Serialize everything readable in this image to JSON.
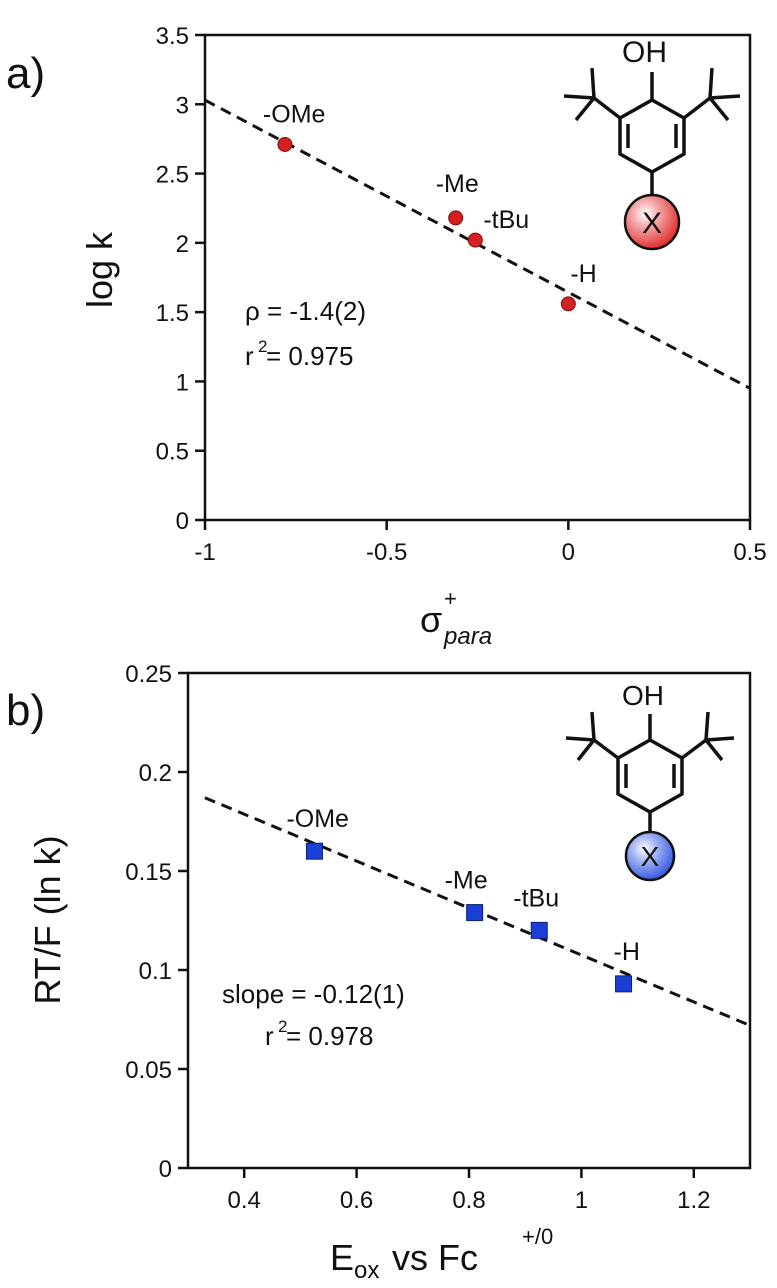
{
  "figure": {
    "panel_a_letter": "a)",
    "panel_b_letter": "b)"
  },
  "chart_data": [
    {
      "type": "scatter",
      "panel": "a)",
      "xlabel": "σ",
      "xlabel_sup": "+",
      "xlabel_sub": "para",
      "ylabel": "log k",
      "xlim": [
        -1,
        0.5
      ],
      "ylim": [
        0,
        3.5
      ],
      "xticks": [
        "-1",
        "-0.5",
        "0",
        "0.5"
      ],
      "yticks": [
        "0",
        "0.5",
        "1",
        "1.5",
        "2",
        "2.5",
        "3",
        "3.5"
      ],
      "grid": false,
      "marker": "circle",
      "marker_color": "#d42020",
      "series": [
        {
          "labels": [
            "-OMe",
            "-Me",
            "-tBu",
            "-H"
          ],
          "x": [
            -0.78,
            -0.31,
            -0.256,
            0.0
          ],
          "y": [
            2.71,
            2.18,
            2.02,
            1.56
          ]
        }
      ],
      "fit": {
        "x": [
          -1,
          0.5
        ],
        "y": [
          3.03,
          0.95
        ],
        "style": "dashed"
      },
      "annotations": [
        "ρ = -1.4(2)",
        "r",
        "2",
        " = 0.975"
      ],
      "inset": {
        "label": "X",
        "group": "OH",
        "color": "#e02424"
      }
    },
    {
      "type": "scatter",
      "panel": "b)",
      "xlabel": "E",
      "xlabel_sub": "ox",
      "xlabel_rest": " vs Fc",
      "xlabel_sup": "+/0",
      "ylabel": "RT/F (ln k)",
      "xlim": [
        0.3,
        1.3
      ],
      "ylim": [
        0,
        0.25
      ],
      "xticks": [
        "0.4",
        "0.6",
        "0.8",
        "1",
        "1.2"
      ],
      "yticks": [
        "0",
        "0.05",
        "0.1",
        "0.15",
        "0.2",
        "0.25"
      ],
      "grid": false,
      "marker": "square",
      "marker_color": "#1a3fd6",
      "series": [
        {
          "labels": [
            "-OMe",
            "-Me",
            "-tBu",
            "-H"
          ],
          "x": [
            0.525,
            0.81,
            0.925,
            1.075
          ],
          "y": [
            0.16,
            0.129,
            0.12,
            0.093
          ]
        }
      ],
      "fit": {
        "x": [
          0.33,
          1.3
        ],
        "y": [
          0.187,
          0.072
        ],
        "style": "dashed"
      },
      "annotations": [
        "slope = -0.12(1)",
        "r",
        "2",
        " = 0.978"
      ],
      "inset": {
        "label": "X",
        "group": "OH",
        "color": "#2d52e0"
      }
    }
  ]
}
